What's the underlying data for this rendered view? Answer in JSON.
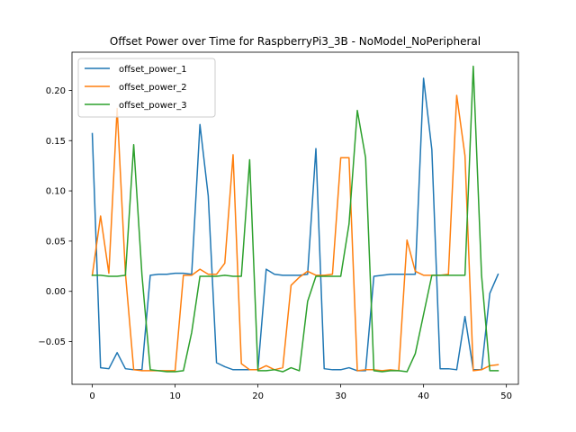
{
  "chart_data": {
    "type": "line",
    "title": "Offset Power over Time for RaspberryPi3_3B - NoModel_NoPeripheral",
    "xlabel": "",
    "ylabel": "",
    "xlim": [
      -2.45,
      51.45
    ],
    "ylim": [
      -0.0925,
      0.238
    ],
    "xticks": [
      0,
      10,
      20,
      30,
      40,
      50
    ],
    "xtick_labels": [
      "0",
      "10",
      "20",
      "30",
      "40",
      "50"
    ],
    "yticks": [
      -0.05,
      0.0,
      0.05,
      0.1,
      0.15,
      0.2
    ],
    "ytick_labels": [
      "−0.05",
      "0.00",
      "0.05",
      "0.10",
      "0.15",
      "0.20"
    ],
    "grid": false,
    "legend_position": "upper-left",
    "x": [
      0,
      1,
      2,
      3,
      4,
      5,
      6,
      7,
      8,
      9,
      10,
      11,
      12,
      13,
      14,
      15,
      16,
      17,
      18,
      19,
      20,
      21,
      22,
      23,
      24,
      25,
      26,
      27,
      28,
      29,
      30,
      31,
      32,
      33,
      34,
      35,
      36,
      37,
      38,
      39,
      40,
      41,
      42,
      43,
      44,
      45,
      46,
      47,
      48,
      49
    ],
    "series": [
      {
        "name": "offset_power_1",
        "color": "#1f77b4",
        "values": [
          0.157,
          -0.076,
          -0.077,
          -0.061,
          -0.077,
          -0.078,
          -0.078,
          0.016,
          0.017,
          0.017,
          0.018,
          0.018,
          0.017,
          0.166,
          0.095,
          -0.071,
          -0.075,
          -0.078,
          -0.078,
          -0.078,
          -0.078,
          0.022,
          0.017,
          0.016,
          0.016,
          0.016,
          0.017,
          0.142,
          -0.077,
          -0.078,
          -0.078,
          -0.076,
          -0.079,
          -0.079,
          0.015,
          0.016,
          0.017,
          0.017,
          0.017,
          0.017,
          0.212,
          0.141,
          -0.077,
          -0.077,
          -0.078,
          -0.025,
          -0.078,
          -0.078,
          -0.002,
          0.017
        ]
      },
      {
        "name": "offset_power_2",
        "color": "#ff7f0e",
        "values": [
          0.016,
          0.075,
          0.018,
          0.182,
          0.018,
          -0.078,
          -0.079,
          -0.079,
          -0.079,
          -0.079,
          -0.079,
          0.016,
          0.016,
          0.022,
          0.017,
          0.017,
          0.028,
          0.136,
          -0.072,
          -0.078,
          -0.078,
          -0.074,
          -0.078,
          -0.076,
          0.006,
          0.014,
          0.02,
          0.016,
          0.016,
          0.017,
          0.133,
          0.133,
          -0.079,
          -0.078,
          -0.078,
          -0.079,
          -0.078,
          -0.079,
          0.051,
          0.02,
          0.016,
          0.016,
          0.016,
          0.017,
          0.195,
          0.135,
          -0.079,
          -0.078,
          -0.074,
          -0.073
        ]
      },
      {
        "name": "offset_power_3",
        "color": "#2ca02c",
        "values": [
          0.016,
          0.016,
          0.015,
          0.015,
          0.016,
          0.146,
          0.016,
          -0.078,
          -0.079,
          -0.08,
          -0.08,
          -0.079,
          -0.041,
          0.015,
          0.015,
          0.015,
          0.016,
          0.015,
          0.015,
          0.131,
          -0.079,
          -0.079,
          -0.078,
          -0.08,
          -0.076,
          -0.079,
          -0.01,
          0.015,
          0.015,
          0.015,
          0.015,
          0.067,
          0.18,
          0.133,
          -0.079,
          -0.08,
          -0.079,
          -0.079,
          -0.08,
          -0.062,
          -0.023,
          0.016,
          0.016,
          0.016,
          0.016,
          0.016,
          0.224,
          0.016,
          -0.079,
          -0.079
        ]
      }
    ]
  }
}
